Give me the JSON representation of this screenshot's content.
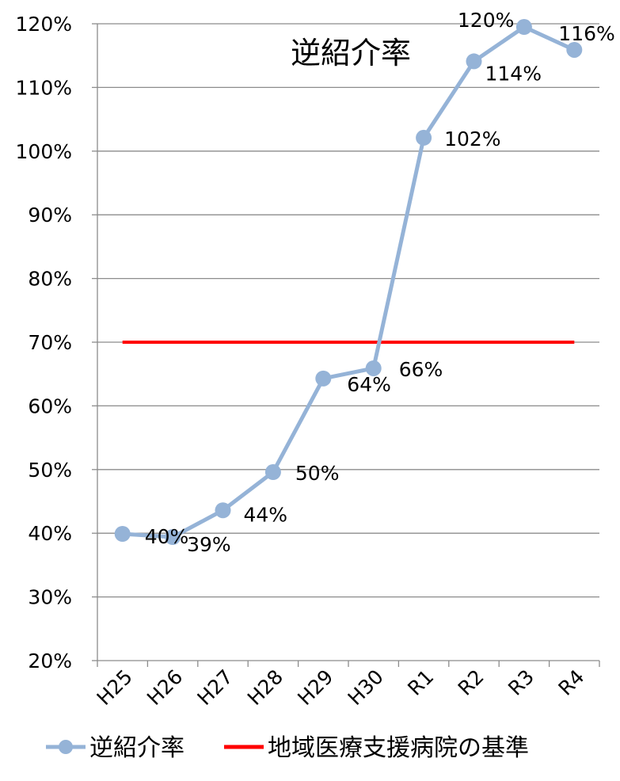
{
  "chart_data": {
    "type": "line",
    "title": "逆紹介率",
    "categories": [
      "H25",
      "H26",
      "H27",
      "H28",
      "H29",
      "H30",
      "R1",
      "R2",
      "R3",
      "R4"
    ],
    "ylim": [
      20,
      120
    ],
    "yticks": [
      20,
      30,
      40,
      50,
      60,
      70,
      80,
      90,
      100,
      110,
      120
    ],
    "ytick_labels": [
      "20%",
      "30%",
      "40%",
      "50%",
      "60%",
      "70%",
      "80%",
      "90%",
      "100%",
      "110%",
      "120%"
    ],
    "grid": true,
    "legend_position": "bottom",
    "series": [
      {
        "name": "逆紹介率",
        "values": [
          40,
          39,
          44,
          50,
          64,
          66,
          102,
          114,
          120,
          116
        ],
        "plot_values": [
          39.9,
          39.4,
          43.6,
          49.6,
          64.3,
          65.9,
          102.1,
          114.1,
          119.5,
          115.9
        ],
        "labels": [
          "40%",
          "39%",
          "44%",
          "50%",
          "64%",
          "66%",
          "102%",
          "114%",
          "120%",
          "116%"
        ],
        "color": "#95b3d7",
        "marker": "circle"
      },
      {
        "name": "地域医療支援病院の基準",
        "values": [
          70,
          70,
          70,
          70,
          70,
          70,
          70,
          70,
          70,
          70
        ],
        "color": "#ff0000",
        "marker": "none"
      }
    ]
  }
}
